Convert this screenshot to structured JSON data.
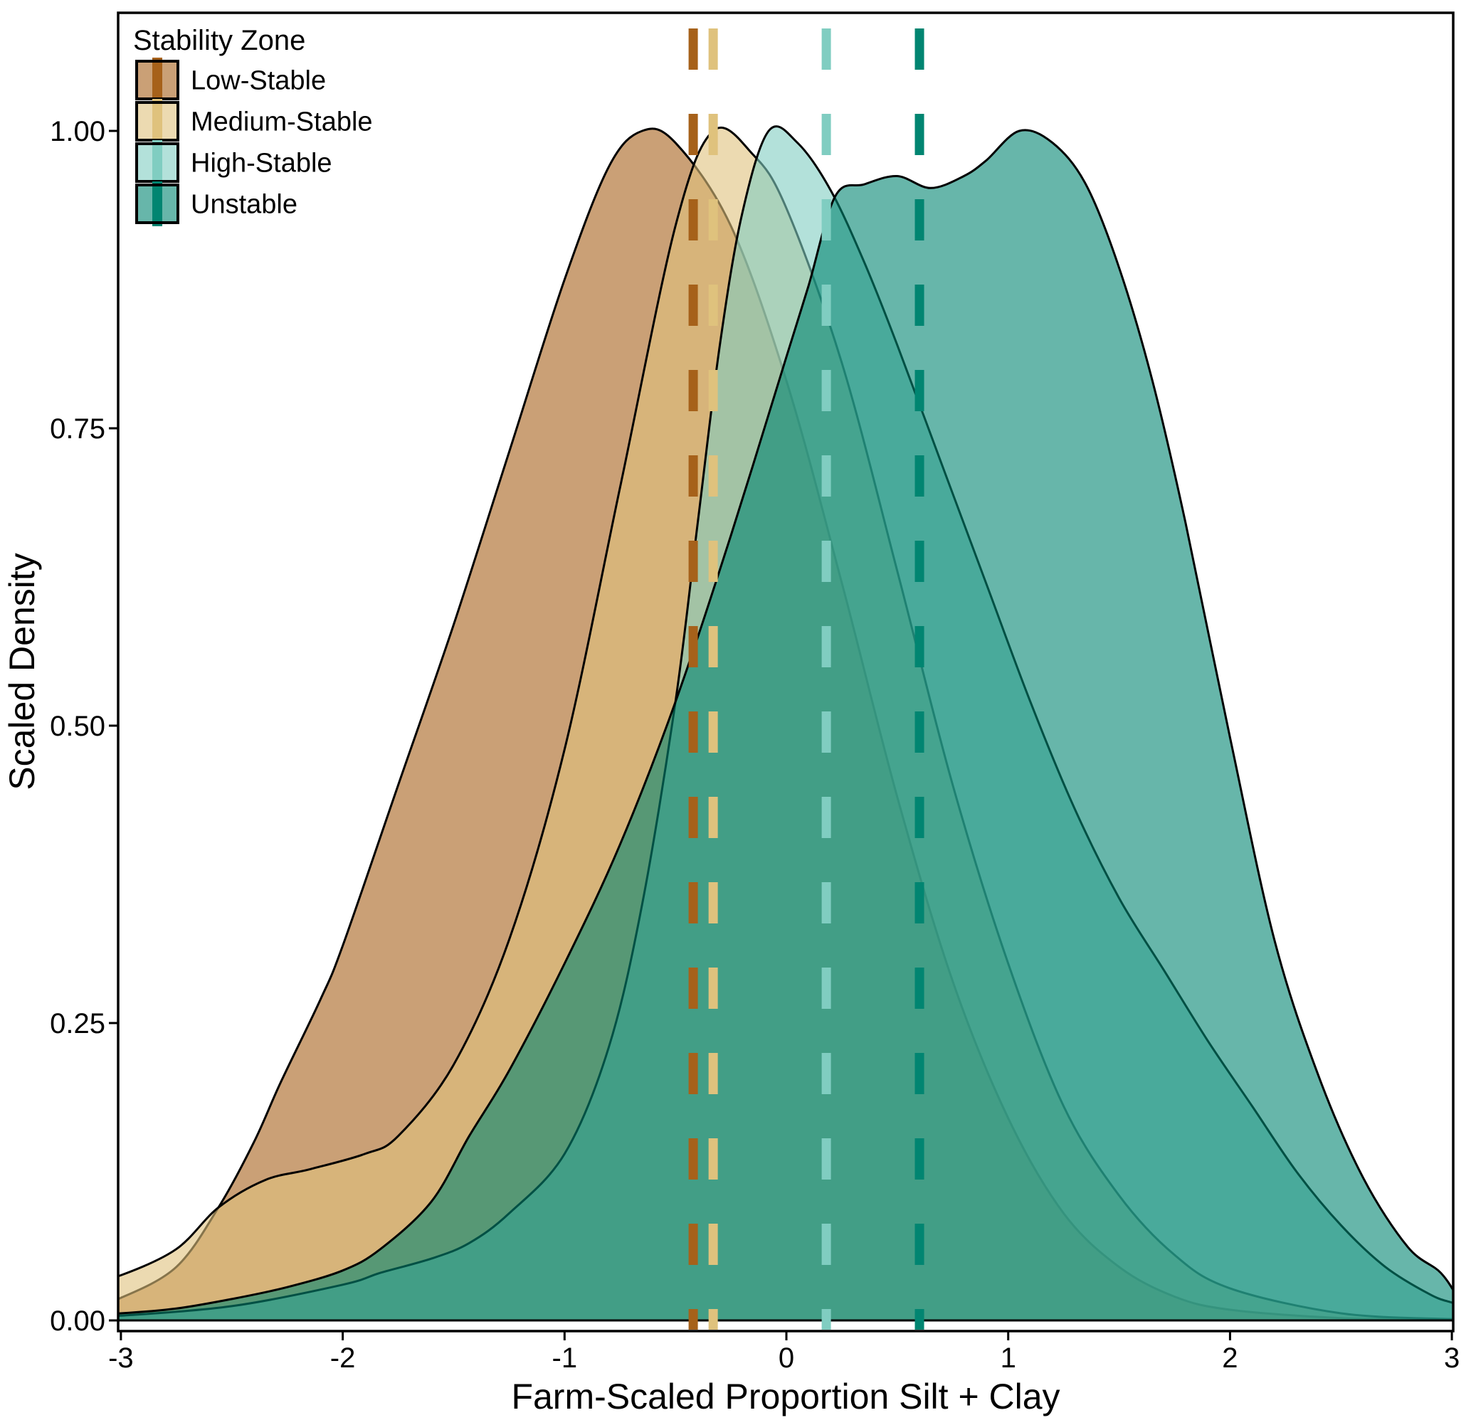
{
  "legend": {
    "title": "Stability Zone",
    "items": [
      {
        "label": "Low-Stable",
        "line_color": "#A6611A",
        "fill_color": "#A6611A"
      },
      {
        "label": "Medium-Stable",
        "line_color": "#DFC27D",
        "fill_color": "#DFC27D"
      },
      {
        "label": "High-Stable",
        "line_color": "#80CDC1",
        "fill_color": "#80CDC1"
      },
      {
        "label": "Unstable",
        "line_color": "#018571",
        "fill_color": "#018571"
      }
    ]
  },
  "colors": {
    "background": "#ffffff",
    "panel_border": "#000000",
    "curve_outline": "#000000",
    "text": "#000000",
    "fill_alpha": 0.6
  },
  "chart_data": {
    "type": "area",
    "subtype": "overlapping-density",
    "title": "",
    "xlabel": "Farm-Scaled Proportion Silt + Clay",
    "ylabel": "Scaled Density",
    "xlim": [
      -3,
      3
    ],
    "ylim": [
      0,
      1.05
    ],
    "x_ticks": [
      {
        "v": -3,
        "label": "-3"
      },
      {
        "v": -2,
        "label": "-2"
      },
      {
        "v": -1,
        "label": "-1"
      },
      {
        "v": 0,
        "label": "0"
      },
      {
        "v": 1,
        "label": "1"
      },
      {
        "v": 2,
        "label": "2"
      },
      {
        "v": 3,
        "label": "3"
      }
    ],
    "y_ticks": [
      {
        "v": 0,
        "label": "0.00"
      },
      {
        "v": 0.25,
        "label": "0.25"
      },
      {
        "v": 0.5,
        "label": "0.50"
      },
      {
        "v": 0.75,
        "label": "0.75"
      },
      {
        "v": 1,
        "label": "1.00"
      }
    ],
    "grid": false,
    "legend_position": "inside-top-left",
    "series": [
      {
        "name": "Low-Stable",
        "color": "#A6611A",
        "mean_line_x": -0.42,
        "points": [
          [
            -3.1,
            0.016
          ],
          [
            -3,
            0.019
          ],
          [
            -2.75,
            0.045
          ],
          [
            -2.56,
            0.095
          ],
          [
            -2.4,
            0.15
          ],
          [
            -2.28,
            0.2
          ],
          [
            -2.1,
            0.27
          ],
          [
            -2,
            0.315
          ],
          [
            -1.75,
            0.45
          ],
          [
            -1.5,
            0.585
          ],
          [
            -1.25,
            0.73
          ],
          [
            -1,
            0.875
          ],
          [
            -0.8,
            0.97
          ],
          [
            -0.65,
            1.0
          ],
          [
            -0.5,
            0.99
          ],
          [
            -0.25,
            0.92
          ],
          [
            0,
            0.79
          ],
          [
            0.25,
            0.62
          ],
          [
            0.5,
            0.44
          ],
          [
            0.75,
            0.285
          ],
          [
            1,
            0.17
          ],
          [
            1.25,
            0.09
          ],
          [
            1.5,
            0.045
          ],
          [
            1.75,
            0.02
          ],
          [
            2,
            0.009
          ],
          [
            2.5,
            0.002
          ],
          [
            3,
            0.001
          ],
          [
            3.1,
            0.001
          ]
        ]
      },
      {
        "name": "Medium-Stable",
        "color": "#DFC27D",
        "mean_line_x": -0.33,
        "points": [
          [
            -3.1,
            0.036
          ],
          [
            -3,
            0.038
          ],
          [
            -2.75,
            0.06
          ],
          [
            -2.56,
            0.095
          ],
          [
            -2.35,
            0.118
          ],
          [
            -2.15,
            0.127
          ],
          [
            -1.9,
            0.14
          ],
          [
            -1.75,
            0.155
          ],
          [
            -1.5,
            0.215
          ],
          [
            -1.25,
            0.32
          ],
          [
            -1,
            0.48
          ],
          [
            -0.75,
            0.7
          ],
          [
            -0.5,
            0.92
          ],
          [
            -0.33,
            1.0
          ],
          [
            -0.15,
            0.98
          ],
          [
            0,
            0.935
          ],
          [
            0.25,
            0.805
          ],
          [
            0.5,
            0.63
          ],
          [
            0.75,
            0.45
          ],
          [
            1,
            0.3
          ],
          [
            1.25,
            0.18
          ],
          [
            1.5,
            0.105
          ],
          [
            1.75,
            0.055
          ],
          [
            2,
            0.027
          ],
          [
            2.5,
            0.006
          ],
          [
            3,
            0.001
          ],
          [
            3.1,
            0.001
          ]
        ]
      },
      {
        "name": "High-Stable",
        "color": "#80CDC1",
        "mean_line_x": 0.18,
        "points": [
          [
            -3.1,
            0.004
          ],
          [
            -3,
            0.004
          ],
          [
            -2.5,
            0.012
          ],
          [
            -2,
            0.03
          ],
          [
            -1.83,
            0.04
          ],
          [
            -1.6,
            0.052
          ],
          [
            -1.43,
            0.065
          ],
          [
            -1.25,
            0.09
          ],
          [
            -1,
            0.14
          ],
          [
            -0.8,
            0.23
          ],
          [
            -0.65,
            0.35
          ],
          [
            -0.5,
            0.52
          ],
          [
            -0.4,
            0.67
          ],
          [
            -0.3,
            0.82
          ],
          [
            -0.2,
            0.93
          ],
          [
            -0.08,
            1.0
          ],
          [
            0.05,
            0.99
          ],
          [
            0.2,
            0.95
          ],
          [
            0.35,
            0.89
          ],
          [
            0.5,
            0.82
          ],
          [
            0.7,
            0.72
          ],
          [
            0.9,
            0.62
          ],
          [
            1.1,
            0.52
          ],
          [
            1.3,
            0.43
          ],
          [
            1.5,
            0.355
          ],
          [
            1.7,
            0.295
          ],
          [
            1.9,
            0.235
          ],
          [
            2.1,
            0.18
          ],
          [
            2.3,
            0.125
          ],
          [
            2.5,
            0.08
          ],
          [
            2.7,
            0.045
          ],
          [
            2.9,
            0.022
          ],
          [
            3,
            0.015
          ],
          [
            3.1,
            0.01
          ]
        ]
      },
      {
        "name": "Unstable",
        "color": "#018571",
        "mean_line_x": 0.6,
        "points": [
          [
            -3.1,
            0.006
          ],
          [
            -3,
            0.006
          ],
          [
            -2.75,
            0.01
          ],
          [
            -2.5,
            0.018
          ],
          [
            -2.25,
            0.028
          ],
          [
            -2,
            0.042
          ],
          [
            -1.83,
            0.06
          ],
          [
            -1.6,
            0.1
          ],
          [
            -1.43,
            0.155
          ],
          [
            -1.25,
            0.21
          ],
          [
            -1,
            0.3
          ],
          [
            -0.75,
            0.4
          ],
          [
            -0.5,
            0.52
          ],
          [
            -0.25,
            0.66
          ],
          [
            0,
            0.81
          ],
          [
            0.1,
            0.87
          ],
          [
            0.22,
            0.945
          ],
          [
            0.35,
            0.955
          ],
          [
            0.5,
            0.962
          ],
          [
            0.65,
            0.952
          ],
          [
            0.8,
            0.962
          ],
          [
            0.9,
            0.975
          ],
          [
            1.05,
            1.0
          ],
          [
            1.2,
            0.99
          ],
          [
            1.35,
            0.955
          ],
          [
            1.5,
            0.885
          ],
          [
            1.65,
            0.79
          ],
          [
            1.8,
            0.67
          ],
          [
            2,
            0.49
          ],
          [
            2.2,
            0.32
          ],
          [
            2.4,
            0.205
          ],
          [
            2.6,
            0.12
          ],
          [
            2.8,
            0.062
          ],
          [
            2.95,
            0.04
          ],
          [
            3.04,
            0.015
          ],
          [
            3.08,
            0.004
          ]
        ]
      }
    ]
  }
}
